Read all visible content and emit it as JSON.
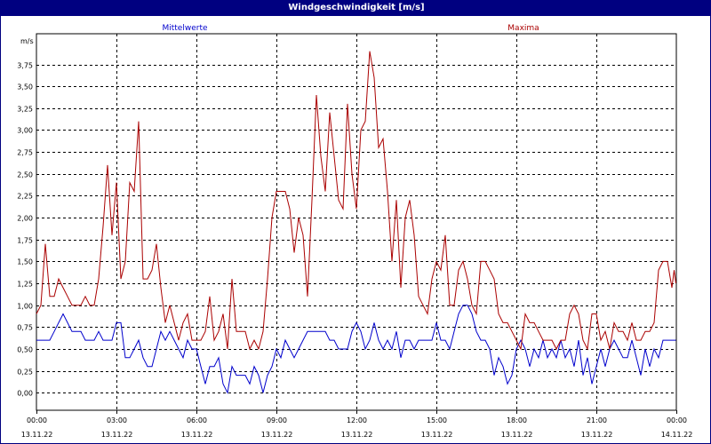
{
  "window": {
    "title": "Windgeschwindigkeit [m/s]"
  },
  "chart_data": {
    "type": "line",
    "title": "Windgeschwindigkeit [m/s]",
    "ylabel": "m/s",
    "ylim": [
      -0.2,
      4.1
    ],
    "xlim": [
      "13.11.22 00:00",
      "14.11.22 00:00"
    ],
    "y_ticks": [
      "3,75",
      "3,50",
      "3,25",
      "3,00",
      "2,75",
      "2,50",
      "2,25",
      "2,00",
      "1,75",
      "1,50",
      "1,25",
      "1,00",
      "0,75",
      "0,50",
      "0,25",
      "0,00"
    ],
    "x_ticks": [
      {
        "time": "00:00",
        "date": "13.11.22"
      },
      {
        "time": "03:00",
        "date": "13.11.22"
      },
      {
        "time": "06:00",
        "date": "13.11.22"
      },
      {
        "time": "09:00",
        "date": "13.11.22"
      },
      {
        "time": "12:00",
        "date": "13.11.22"
      },
      {
        "time": "15:00",
        "date": "13.11.22"
      },
      {
        "time": "18:00",
        "date": "13.11.22"
      },
      {
        "time": "21:00",
        "date": "13.11.22"
      },
      {
        "time": "00:00",
        "date": "14.11.22"
      }
    ],
    "grid": true,
    "colors": {
      "mittelwerte": "#0000cc",
      "maxima": "#aa0000",
      "title_bar": "#000080"
    },
    "series": [
      {
        "name": "Mittelwerte",
        "points": [
          [
            "00:00",
            0.6
          ],
          [
            "00:30",
            0.6
          ],
          [
            "00:40",
            0.7
          ],
          [
            "00:50",
            0.8
          ],
          [
            "01:00",
            0.9
          ],
          [
            "01:10",
            0.8
          ],
          [
            "01:20",
            0.7
          ],
          [
            "01:40",
            0.7
          ],
          [
            "01:50",
            0.6
          ],
          [
            "02:10",
            0.6
          ],
          [
            "02:20",
            0.7
          ],
          [
            "02:30",
            0.6
          ],
          [
            "02:50",
            0.6
          ],
          [
            "03:00",
            0.8
          ],
          [
            "03:10",
            0.8
          ],
          [
            "03:20",
            0.4
          ],
          [
            "03:30",
            0.4
          ],
          [
            "03:40",
            0.5
          ],
          [
            "03:50",
            0.6
          ],
          [
            "04:00",
            0.4
          ],
          [
            "04:10",
            0.3
          ],
          [
            "04:20",
            0.3
          ],
          [
            "04:40",
            0.7
          ],
          [
            "04:50",
            0.6
          ],
          [
            "05:00",
            0.7
          ],
          [
            "05:10",
            0.6
          ],
          [
            "05:20",
            0.5
          ],
          [
            "05:30",
            0.4
          ],
          [
            "05:40",
            0.6
          ],
          [
            "05:50",
            0.5
          ],
          [
            "06:00",
            0.5
          ],
          [
            "06:10",
            0.3
          ],
          [
            "06:20",
            0.1
          ],
          [
            "06:30",
            0.3
          ],
          [
            "06:40",
            0.3
          ],
          [
            "06:50",
            0.4
          ],
          [
            "07:00",
            0.1
          ],
          [
            "07:10",
            0.0
          ],
          [
            "07:20",
            0.3
          ],
          [
            "07:30",
            0.2
          ],
          [
            "07:50",
            0.2
          ],
          [
            "08:00",
            0.1
          ],
          [
            "08:10",
            0.3
          ],
          [
            "08:20",
            0.2
          ],
          [
            "08:30",
            0.0
          ],
          [
            "08:40",
            0.2
          ],
          [
            "08:50",
            0.3
          ],
          [
            "09:00",
            0.5
          ],
          [
            "09:10",
            0.4
          ],
          [
            "09:20",
            0.6
          ],
          [
            "09:30",
            0.5
          ],
          [
            "09:40",
            0.4
          ],
          [
            "09:50",
            0.5
          ],
          [
            "10:00",
            0.6
          ],
          [
            "10:10",
            0.7
          ],
          [
            "10:50",
            0.7
          ],
          [
            "11:00",
            0.6
          ],
          [
            "11:10",
            0.6
          ],
          [
            "11:20",
            0.5
          ],
          [
            "11:40",
            0.5
          ],
          [
            "11:50",
            0.7
          ],
          [
            "12:00",
            0.8
          ],
          [
            "12:10",
            0.7
          ],
          [
            "12:20",
            0.5
          ],
          [
            "12:30",
            0.6
          ],
          [
            "12:40",
            0.8
          ],
          [
            "12:50",
            0.6
          ],
          [
            "13:00",
            0.5
          ],
          [
            "13:10",
            0.6
          ],
          [
            "13:20",
            0.5
          ],
          [
            "13:30",
            0.7
          ],
          [
            "13:40",
            0.4
          ],
          [
            "13:50",
            0.6
          ],
          [
            "14:00",
            0.6
          ],
          [
            "14:10",
            0.5
          ],
          [
            "14:20",
            0.6
          ],
          [
            "14:30",
            0.6
          ],
          [
            "14:50",
            0.6
          ],
          [
            "15:00",
            0.8
          ],
          [
            "15:10",
            0.6
          ],
          [
            "15:20",
            0.6
          ],
          [
            "15:30",
            0.5
          ],
          [
            "15:40",
            0.7
          ],
          [
            "15:50",
            0.9
          ],
          [
            "16:00",
            1.0
          ],
          [
            "16:10",
            1.0
          ],
          [
            "16:20",
            0.9
          ],
          [
            "16:30",
            0.7
          ],
          [
            "16:40",
            0.6
          ],
          [
            "16:50",
            0.6
          ],
          [
            "17:00",
            0.5
          ],
          [
            "17:10",
            0.2
          ],
          [
            "17:20",
            0.4
          ],
          [
            "17:30",
            0.3
          ],
          [
            "17:40",
            0.1
          ],
          [
            "17:50",
            0.2
          ],
          [
            "18:00",
            0.5
          ],
          [
            "18:10",
            0.6
          ],
          [
            "18:20",
            0.5
          ],
          [
            "18:30",
            0.3
          ],
          [
            "18:40",
            0.5
          ],
          [
            "18:50",
            0.4
          ],
          [
            "19:00",
            0.6
          ],
          [
            "19:10",
            0.4
          ],
          [
            "19:20",
            0.5
          ],
          [
            "19:30",
            0.4
          ],
          [
            "19:40",
            0.6
          ],
          [
            "19:50",
            0.4
          ],
          [
            "20:00",
            0.5
          ],
          [
            "20:10",
            0.3
          ],
          [
            "20:20",
            0.6
          ],
          [
            "20:30",
            0.2
          ],
          [
            "20:40",
            0.4
          ],
          [
            "20:50",
            0.1
          ],
          [
            "21:00",
            0.3
          ],
          [
            "21:10",
            0.5
          ],
          [
            "21:20",
            0.3
          ],
          [
            "21:30",
            0.5
          ],
          [
            "21:40",
            0.6
          ],
          [
            "21:50",
            0.5
          ],
          [
            "22:00",
            0.4
          ],
          [
            "22:10",
            0.4
          ],
          [
            "22:20",
            0.6
          ],
          [
            "22:30",
            0.4
          ],
          [
            "22:40",
            0.2
          ],
          [
            "22:50",
            0.5
          ],
          [
            "23:00",
            0.3
          ],
          [
            "23:10",
            0.5
          ],
          [
            "23:20",
            0.4
          ],
          [
            "23:30",
            0.6
          ],
          [
            "23:59",
            0.6
          ]
        ]
      },
      {
        "name": "Maxima",
        "points": [
          [
            "00:00",
            0.9
          ],
          [
            "00:10",
            1.0
          ],
          [
            "00:20",
            1.7
          ],
          [
            "00:30",
            1.1
          ],
          [
            "00:40",
            1.1
          ],
          [
            "00:50",
            1.3
          ],
          [
            "01:00",
            1.2
          ],
          [
            "01:10",
            1.1
          ],
          [
            "01:20",
            1.0
          ],
          [
            "01:30",
            1.0
          ],
          [
            "01:40",
            1.0
          ],
          [
            "01:50",
            1.1
          ],
          [
            "02:00",
            1.0
          ],
          [
            "02:10",
            1.0
          ],
          [
            "02:20",
            1.3
          ],
          [
            "02:30",
            1.9
          ],
          [
            "02:40",
            2.6
          ],
          [
            "02:50",
            1.8
          ],
          [
            "03:00",
            2.4
          ],
          [
            "03:10",
            1.3
          ],
          [
            "03:20",
            1.5
          ],
          [
            "03:30",
            2.4
          ],
          [
            "03:40",
            2.3
          ],
          [
            "03:50",
            3.1
          ],
          [
            "04:00",
            1.3
          ],
          [
            "04:10",
            1.3
          ],
          [
            "04:20",
            1.4
          ],
          [
            "04:30",
            1.7
          ],
          [
            "04:40",
            1.2
          ],
          [
            "04:50",
            0.8
          ],
          [
            "05:00",
            1.0
          ],
          [
            "05:10",
            0.8
          ],
          [
            "05:20",
            0.6
          ],
          [
            "05:30",
            0.8
          ],
          [
            "05:40",
            0.9
          ],
          [
            "05:50",
            0.6
          ],
          [
            "06:10",
            0.6
          ],
          [
            "06:20",
            0.7
          ],
          [
            "06:30",
            1.1
          ],
          [
            "06:40",
            0.6
          ],
          [
            "06:50",
            0.7
          ],
          [
            "07:00",
            0.9
          ],
          [
            "07:10",
            0.5
          ],
          [
            "07:20",
            1.3
          ],
          [
            "07:30",
            0.7
          ],
          [
            "07:50",
            0.7
          ],
          [
            "08:00",
            0.5
          ],
          [
            "08:10",
            0.6
          ],
          [
            "08:20",
            0.5
          ],
          [
            "08:30",
            0.7
          ],
          [
            "08:40",
            1.3
          ],
          [
            "08:50",
            2.0
          ],
          [
            "09:00",
            2.3
          ],
          [
            "09:20",
            2.3
          ],
          [
            "09:30",
            2.1
          ],
          [
            "09:40",
            1.6
          ],
          [
            "09:50",
            2.0
          ],
          [
            "10:00",
            1.8
          ],
          [
            "10:10",
            1.1
          ],
          [
            "10:20",
            2.2
          ],
          [
            "10:30",
            3.4
          ],
          [
            "10:40",
            2.7
          ],
          [
            "10:50",
            2.3
          ],
          [
            "11:00",
            3.2
          ],
          [
            "11:10",
            2.7
          ],
          [
            "11:20",
            2.2
          ],
          [
            "11:30",
            2.1
          ],
          [
            "11:40",
            3.3
          ],
          [
            "11:50",
            2.5
          ],
          [
            "12:00",
            2.1
          ],
          [
            "12:10",
            3.0
          ],
          [
            "12:20",
            3.1
          ],
          [
            "12:30",
            3.9
          ],
          [
            "12:40",
            3.6
          ],
          [
            "12:50",
            2.8
          ],
          [
            "13:00",
            2.9
          ],
          [
            "13:10",
            2.3
          ],
          [
            "13:20",
            1.5
          ],
          [
            "13:30",
            2.2
          ],
          [
            "13:40",
            1.2
          ],
          [
            "13:50",
            2.0
          ],
          [
            "14:00",
            2.2
          ],
          [
            "14:10",
            1.8
          ],
          [
            "14:20",
            1.1
          ],
          [
            "14:30",
            1.0
          ],
          [
            "14:40",
            0.9
          ],
          [
            "14:50",
            1.3
          ],
          [
            "15:00",
            1.5
          ],
          [
            "15:10",
            1.4
          ],
          [
            "15:20",
            1.8
          ],
          [
            "15:30",
            1.0
          ],
          [
            "15:40",
            1.0
          ],
          [
            "15:50",
            1.4
          ],
          [
            "16:00",
            1.5
          ],
          [
            "16:10",
            1.3
          ],
          [
            "16:20",
            1.0
          ],
          [
            "16:30",
            0.9
          ],
          [
            "16:40",
            1.5
          ],
          [
            "16:50",
            1.5
          ],
          [
            "17:00",
            1.4
          ],
          [
            "17:10",
            1.3
          ],
          [
            "17:20",
            0.9
          ],
          [
            "17:30",
            0.8
          ],
          [
            "17:40",
            0.8
          ],
          [
            "17:50",
            0.7
          ],
          [
            "18:00",
            0.6
          ],
          [
            "18:10",
            0.5
          ],
          [
            "18:20",
            0.9
          ],
          [
            "18:30",
            0.8
          ],
          [
            "18:40",
            0.8
          ],
          [
            "18:50",
            0.7
          ],
          [
            "19:00",
            0.6
          ],
          [
            "19:20",
            0.6
          ],
          [
            "19:30",
            0.5
          ],
          [
            "19:40",
            0.6
          ],
          [
            "19:50",
            0.6
          ],
          [
            "20:00",
            0.9
          ],
          [
            "20:10",
            1.0
          ],
          [
            "20:20",
            0.9
          ],
          [
            "20:30",
            0.6
          ],
          [
            "20:40",
            0.5
          ],
          [
            "20:50",
            0.9
          ],
          [
            "21:00",
            0.9
          ],
          [
            "21:10",
            0.6
          ],
          [
            "21:20",
            0.7
          ],
          [
            "21:30",
            0.5
          ],
          [
            "21:40",
            0.8
          ],
          [
            "21:50",
            0.7
          ],
          [
            "22:00",
            0.7
          ],
          [
            "22:10",
            0.6
          ],
          [
            "22:20",
            0.8
          ],
          [
            "22:30",
            0.6
          ],
          [
            "22:40",
            0.6
          ],
          [
            "22:50",
            0.7
          ],
          [
            "23:00",
            0.7
          ],
          [
            "23:10",
            0.8
          ],
          [
            "23:20",
            1.4
          ],
          [
            "23:30",
            1.5
          ],
          [
            "23:40",
            1.5
          ],
          [
            "23:50",
            1.2
          ],
          [
            "23:55",
            1.4
          ],
          [
            "23:59",
            1.25
          ]
        ]
      }
    ]
  }
}
